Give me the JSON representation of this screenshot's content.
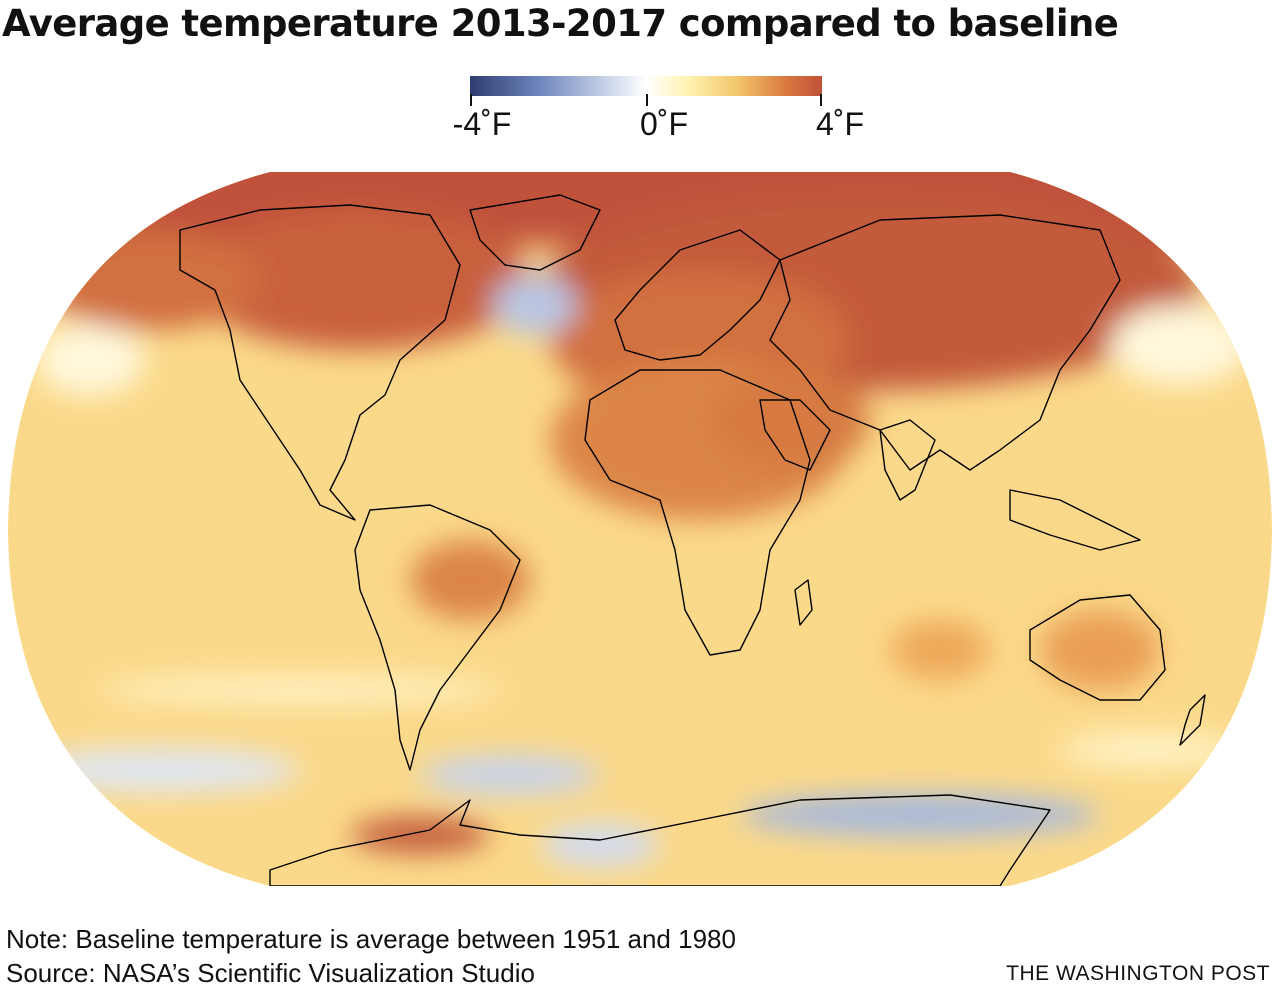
{
  "title": "Average temperature 2013-2017 compared to baseline",
  "legend": {
    "min_label": "-4˚F",
    "mid_label": "0˚F",
    "max_label": "4˚F",
    "colors": [
      "#2e3d70",
      "#6f87bd",
      "#c4d0e6",
      "#ffffff",
      "#fff3b0",
      "#f2c56a",
      "#d9783f",
      "#c0513a"
    ]
  },
  "map": {
    "projection": "Robinson",
    "base_color": "#fbd98a",
    "land_outline_color": "#000000"
  },
  "footer": {
    "note": "Note: Baseline temperature is average between 1951 and 1980",
    "source": "Source: NASA’s Scientific Visualization Studio",
    "credit": "THE WASHINGTON POST"
  }
}
